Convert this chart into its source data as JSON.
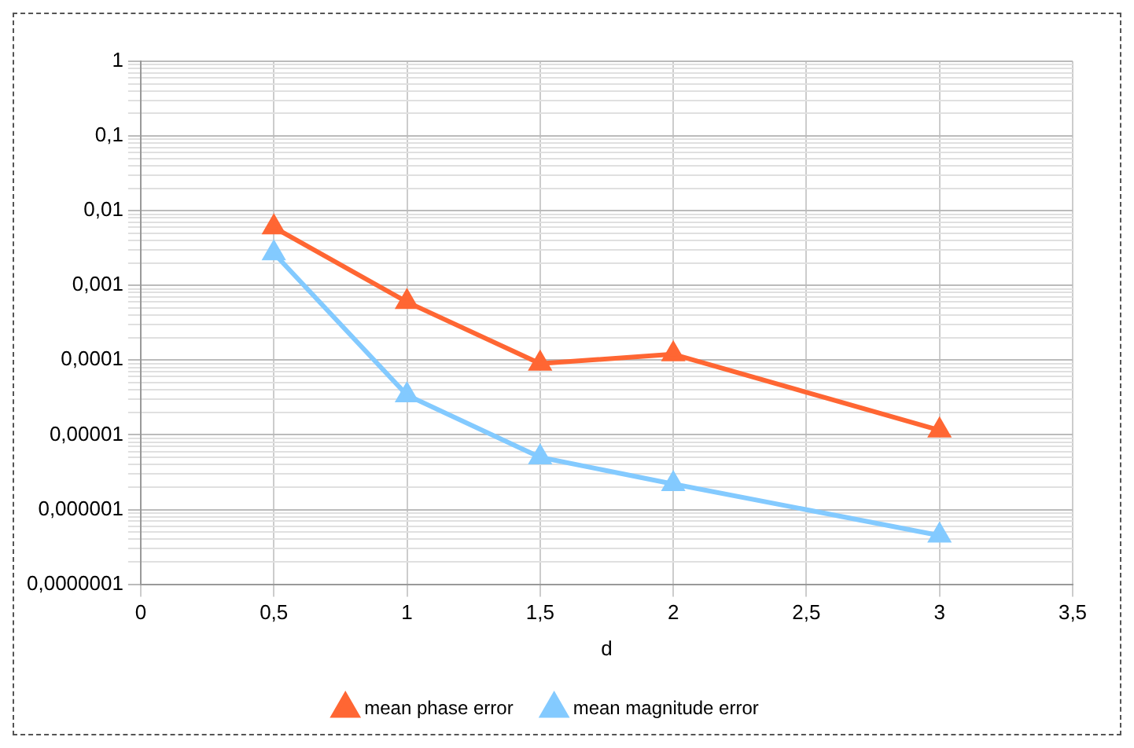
{
  "chart_data": {
    "type": "line",
    "xlabel": "d",
    "x": [
      0.5,
      1,
      1.5,
      2,
      3
    ],
    "series": [
      {
        "name": "mean phase error",
        "color": "#ff6633",
        "values": [
          0.006,
          0.0006,
          9e-05,
          0.00012,
          1.15e-05
        ]
      },
      {
        "name": "mean magnitude error",
        "color": "#83caff",
        "values": [
          0.0027,
          3.4e-05,
          5e-06,
          2.2e-06,
          4.5e-07
        ]
      }
    ],
    "xlim": [
      0,
      3.5
    ],
    "xticks": [
      0,
      {
        "value": 0.5,
        "label": "0,5"
      },
      1,
      {
        "value": 1.5,
        "label": "1,5"
      },
      2,
      {
        "value": 2.5,
        "label": "2,5"
      },
      3,
      {
        "value": 3.5,
        "label": "3,5"
      }
    ],
    "ylim": [
      1e-07,
      1
    ],
    "log": "y",
    "yticks": [
      {
        "value": 1e-07,
        "label": "0,0000001"
      },
      {
        "value": 2e-07,
        "label": null
      },
      {
        "value": 3e-07,
        "label": null
      },
      {
        "value": 4e-07,
        "label": null
      },
      {
        "value": 5e-07,
        "label": null
      },
      {
        "value": 6e-07,
        "label": null
      },
      {
        "value": 7e-07,
        "label": null
      },
      {
        "value": 8e-07,
        "label": null
      },
      {
        "value": 9e-07,
        "label": null
      },
      {
        "value": 1e-06,
        "label": "0,000001"
      },
      {
        "value": 2e-06,
        "label": null
      },
      {
        "value": 3e-06,
        "label": null
      },
      {
        "value": 4e-06,
        "label": null
      },
      {
        "value": 5e-06,
        "label": null
      },
      {
        "value": 6e-06,
        "label": null
      },
      {
        "value": 7e-06,
        "label": null
      },
      {
        "value": 8e-06,
        "label": null
      },
      {
        "value": 9e-06,
        "label": null
      },
      {
        "value": 1e-05,
        "label": "0,00001"
      },
      {
        "value": 2e-05,
        "label": null
      },
      {
        "value": 3e-05,
        "label": null
      },
      {
        "value": 4e-05,
        "label": null
      },
      {
        "value": 5e-05,
        "label": null
      },
      {
        "value": 6e-05,
        "label": null
      },
      {
        "value": 7e-05,
        "label": null
      },
      {
        "value": 8e-05,
        "label": null
      },
      {
        "value": 9e-05,
        "label": null
      },
      {
        "value": 0.0001,
        "label": "0,0001"
      },
      {
        "value": 0.0002,
        "label": null
      },
      {
        "value": 0.0003,
        "label": null
      },
      {
        "value": 0.0004,
        "label": null
      },
      {
        "value": 0.0005,
        "label": null
      },
      {
        "value": 0.0006,
        "label": null
      },
      {
        "value": 0.0007,
        "label": null
      },
      {
        "value": 0.0008,
        "label": null
      },
      {
        "value": 0.0009,
        "label": null
      },
      {
        "value": 0.001,
        "label": "0,001"
      },
      {
        "value": 0.002,
        "label": null
      },
      {
        "value": 0.003,
        "label": null
      },
      {
        "value": 0.004,
        "label": null
      },
      {
        "value": 0.005,
        "label": null
      },
      {
        "value": 0.006,
        "label": null
      },
      {
        "value": 0.007,
        "label": null
      },
      {
        "value": 0.008,
        "label": null
      },
      {
        "value": 0.009,
        "label": null
      },
      {
        "value": 0.01,
        "label": "0,01"
      },
      {
        "value": 0.02,
        "label": null
      },
      {
        "value": 0.03,
        "label": null
      },
      {
        "value": 0.04,
        "label": null
      },
      {
        "value": 0.05,
        "label": null
      },
      {
        "value": 0.06,
        "label": null
      },
      {
        "value": 0.07,
        "label": null
      },
      {
        "value": 0.08,
        "label": null
      },
      {
        "value": 0.09,
        "label": null
      },
      {
        "value": 0.1,
        "label": "0,1"
      },
      {
        "value": 0.2,
        "label": null
      },
      {
        "value": 0.3,
        "label": null
      },
      {
        "value": 0.4,
        "label": null
      },
      {
        "value": 0.5,
        "label": null
      },
      {
        "value": 0.6,
        "label": null
      },
      {
        "value": 0.7,
        "label": null
      },
      {
        "value": 0.8,
        "label": null
      },
      {
        "value": 0.9,
        "label": null
      },
      1
    ],
    "grid": true,
    "legend": "bottom",
    "marker": "triangle",
    "line_style": "solid"
  }
}
